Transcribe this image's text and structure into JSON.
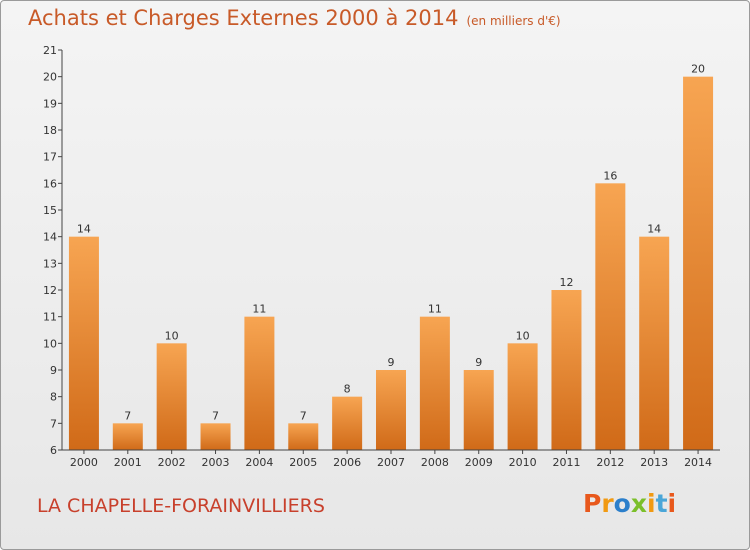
{
  "title": {
    "main": "Achats et Charges Externes 2000 à 2014",
    "unit": "(en milliers d'€)"
  },
  "footer": {
    "commune": "LA CHAPELLE-FORAINVILLIERS",
    "brand": "Proxiti"
  },
  "colors": {
    "title": "#c85a28",
    "bar_light": "#f7a552",
    "bar_dark": "#d06a18",
    "commune": "#c8402c",
    "brand_letters": [
      "#e8581c",
      "#f19a12",
      "#2b7fcb",
      "#7bbf2a",
      "#f19a12",
      "#4aa6d8",
      "#e8581c"
    ]
  },
  "chart_data": {
    "type": "bar",
    "categories": [
      "2000",
      "2001",
      "2002",
      "2003",
      "2004",
      "2005",
      "2006",
      "2007",
      "2008",
      "2009",
      "2010",
      "2011",
      "2012",
      "2013",
      "2014"
    ],
    "values": [
      14,
      7,
      10,
      7,
      11,
      7,
      8,
      9,
      11,
      9,
      10,
      12,
      16,
      14,
      20
    ],
    "ylim": [
      6,
      21
    ],
    "yticks": [
      6,
      7,
      8,
      9,
      10,
      11,
      12,
      13,
      14,
      15,
      16,
      17,
      18,
      19,
      20,
      21
    ],
    "grid": false,
    "data_labels": true
  }
}
